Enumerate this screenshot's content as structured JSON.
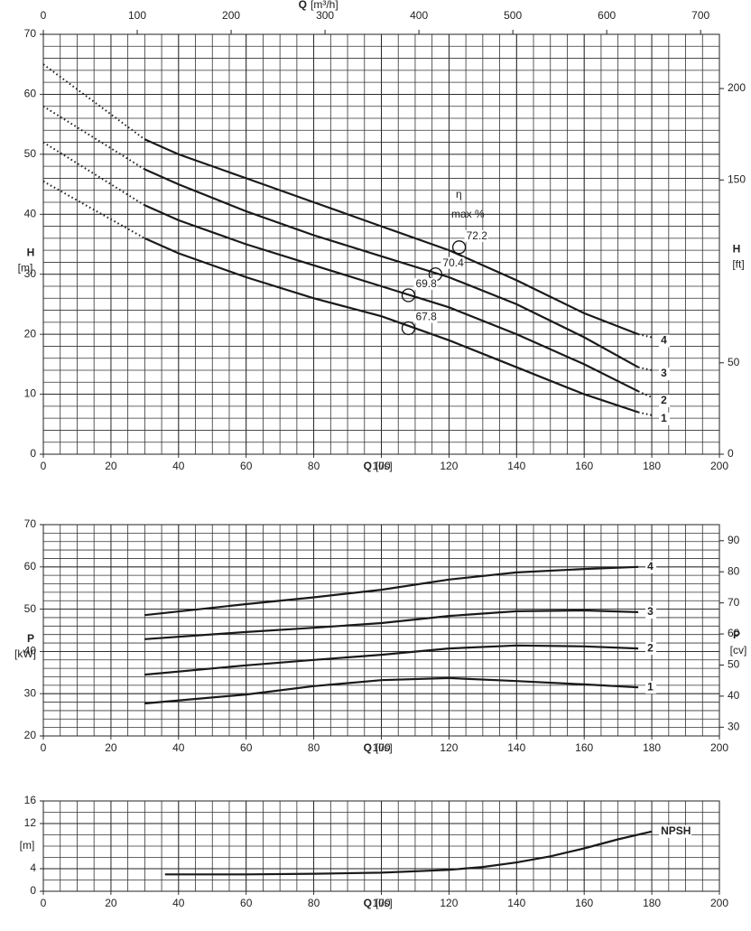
{
  "chart_data": [
    {
      "type": "line",
      "xlim": [
        0,
        200
      ],
      "xticks": [
        0,
        20,
        40,
        60,
        80,
        100,
        120,
        140,
        160,
        180,
        200
      ],
      "xlabel_symbol": "Q",
      "xlabel_unit": "[l/s]",
      "x2lim": [
        0,
        720
      ],
      "x2ticks": [
        0,
        100,
        200,
        300,
        400,
        500,
        600,
        700
      ],
      "x2label_symbol": "Q",
      "x2label_unit": "[m³/h]",
      "ylim": [
        0,
        70
      ],
      "yticks": [
        0,
        10,
        20,
        30,
        40,
        50,
        60,
        70
      ],
      "ylabel_symbol": "H",
      "ylabel_unit": "[m]",
      "y2lim": [
        0,
        229.66
      ],
      "y2ticks": [
        0,
        50,
        150,
        200
      ],
      "y2label_symbol": "H",
      "y2label_unit": "[ft]",
      "grid": true,
      "solid_xlim": [
        30,
        176
      ],
      "x": [
        0,
        30,
        40,
        60,
        80,
        100,
        120,
        140,
        160,
        176,
        180
      ],
      "series": [
        {
          "name": "4",
          "color": "#1a1a1a",
          "values": [
            65,
            52.5,
            50,
            46,
            42,
            38,
            34,
            29,
            23.5,
            20,
            19.5
          ]
        },
        {
          "name": "3",
          "color": "#1a1a1a",
          "values": [
            58,
            47.5,
            45,
            40.5,
            36.5,
            33,
            29.5,
            25,
            19.5,
            14.5,
            14
          ]
        },
        {
          "name": "2",
          "color": "#1a1a1a",
          "values": [
            52,
            41.5,
            39,
            35,
            31.5,
            28,
            24.5,
            20,
            15,
            10.5,
            9.5
          ]
        },
        {
          "name": "1",
          "color": "#1a1a1a",
          "values": [
            45.5,
            36,
            33.5,
            29.5,
            26,
            23,
            19,
            14.5,
            10,
            7,
            6.5
          ]
        }
      ],
      "efficiency_title": "η",
      "efficiency_unit": "max %",
      "efficiency_points": [
        {
          "x": 123,
          "value": 34.5,
          "efficiency": 72.2
        },
        {
          "x": 116,
          "value": 30,
          "efficiency": 70.4
        },
        {
          "x": 108,
          "value": 26.5,
          "efficiency": 69.8
        },
        {
          "x": 108,
          "value": 21,
          "efficiency": 67.8
        }
      ]
    },
    {
      "type": "line",
      "xlim": [
        0,
        200
      ],
      "xticks": [
        0,
        20,
        40,
        60,
        80,
        100,
        120,
        140,
        160,
        180,
        200
      ],
      "xlabel_symbol": "Q",
      "xlabel_unit": "[l/s]",
      "ylim": [
        20,
        70
      ],
      "yticks": [
        20,
        30,
        40,
        50,
        60,
        70
      ],
      "ylabel_symbol": "P",
      "ylabel_unit": "[kW]",
      "y2lim": [
        27.19,
        95.17
      ],
      "y2ticks": [
        30,
        40,
        50,
        60,
        70,
        80,
        90
      ],
      "y2label_symbol": "P",
      "y2label_unit": "[cv]",
      "grid": true,
      "x": [
        30,
        60,
        80,
        100,
        120,
        140,
        160,
        176
      ],
      "series": [
        {
          "name": "4",
          "color": "#1a1a1a",
          "values": [
            48.6,
            51.2,
            52.8,
            54.6,
            57,
            58.7,
            59.5,
            60
          ]
        },
        {
          "name": "3",
          "color": "#1a1a1a",
          "values": [
            42.9,
            44.6,
            45.6,
            46.7,
            48.4,
            49.5,
            49.7,
            49.3
          ]
        },
        {
          "name": "2",
          "color": "#1a1a1a",
          "values": [
            34.5,
            36.7,
            38,
            39.2,
            40.7,
            41.4,
            41.2,
            40.7
          ]
        },
        {
          "name": "1",
          "color": "#1a1a1a",
          "values": [
            27.7,
            29.8,
            31.8,
            33.2,
            33.7,
            33,
            32.2,
            31.5
          ]
        }
      ]
    },
    {
      "type": "line",
      "xlim": [
        0,
        200
      ],
      "xticks": [
        0,
        20,
        40,
        60,
        80,
        100,
        120,
        140,
        160,
        180,
        200
      ],
      "xlabel_symbol": "Q",
      "xlabel_unit": "[l/s]",
      "ylim": [
        0,
        16
      ],
      "yticks": [
        0,
        4,
        12,
        16
      ],
      "ylabel_unit": "[m]",
      "grid": true,
      "x": [
        36,
        60,
        80,
        100,
        120,
        130,
        140,
        150,
        160,
        170,
        180
      ],
      "series": [
        {
          "name": "NPSH",
          "color": "#1a1a1a",
          "values": [
            3,
            3,
            3.1,
            3.3,
            3.8,
            4.3,
            5.1,
            6.2,
            7.6,
            9.2,
            10.6
          ]
        }
      ]
    }
  ]
}
